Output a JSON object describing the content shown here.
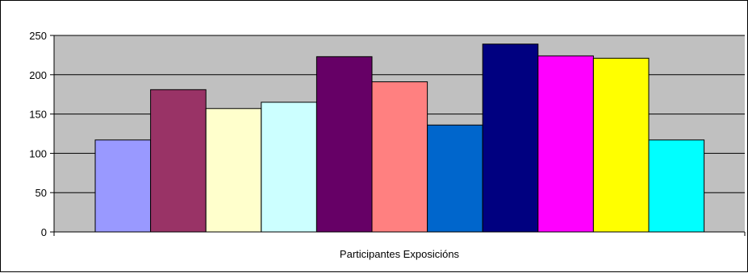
{
  "chart_data": {
    "type": "bar",
    "title": "",
    "xlabel": "Participantes Exposicións",
    "ylabel": "",
    "ylim": [
      0,
      250
    ],
    "ytick_step": 50,
    "grid": true,
    "legend": "none",
    "plot_background": "#c0c0c0",
    "bar_outline_color": "#000000",
    "series": [
      {
        "value": 117,
        "color": "#9999ff"
      },
      {
        "value": 181,
        "color": "#993366"
      },
      {
        "value": 157,
        "color": "#ffffcc"
      },
      {
        "value": 165,
        "color": "#ccffff"
      },
      {
        "value": 223,
        "color": "#660066"
      },
      {
        "value": 191,
        "color": "#ff8080"
      },
      {
        "value": 136,
        "color": "#0066cc"
      },
      {
        "value": 239,
        "color": "#000080"
      },
      {
        "value": 224,
        "color": "#ff00ff"
      },
      {
        "value": 221,
        "color": "#ffff00"
      },
      {
        "value": 117,
        "color": "#00ffff"
      }
    ]
  }
}
